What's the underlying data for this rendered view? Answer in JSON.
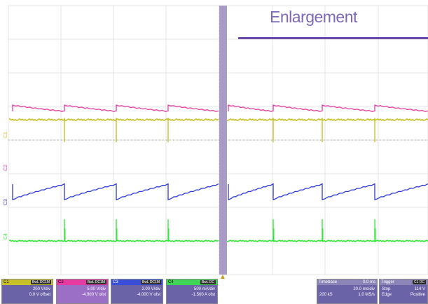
{
  "enlargement": {
    "label": "Enlargement"
  },
  "channels": [
    {
      "id": "C1",
      "badge": "BwL DC1M",
      "vdiv": "200 V/div",
      "offset": "0.0 V offset",
      "color": "#c7c027"
    },
    {
      "id": "C2",
      "badge": "BwL DC1M",
      "vdiv": "5.00 V/div",
      "offset": "-4.900 V ofst",
      "color": "#e53ba0"
    },
    {
      "id": "C3",
      "badge": "BwL DC1M",
      "vdiv": "2.00 V/div",
      "offset": "-4.000 V ofst",
      "color": "#3a4fd8"
    },
    {
      "id": "C4",
      "badge": "BwL DC",
      "vdiv": "500 mA/div",
      "offset": "-1.500 A ofst",
      "color": "#3fd455"
    }
  ],
  "timebase": {
    "label": "Timebase",
    "delay": "0.0 ms",
    "tdiv": "20.0 ms/div",
    "samples": "200 kS",
    "rate": "1.0 MS/s"
  },
  "trigger": {
    "label": "Trigger",
    "source": "C1 DC",
    "mode": "Stop",
    "level": "114 V",
    "type": "Edge",
    "slope": "Positive"
  },
  "trace_colors": {
    "c1": "#c7c027",
    "c2": "#e53ba0",
    "c3": "#2c38d8",
    "c4": "#37e63d",
    "divider": "#a99bc6",
    "enlargement_line": "#6a48a6"
  }
}
